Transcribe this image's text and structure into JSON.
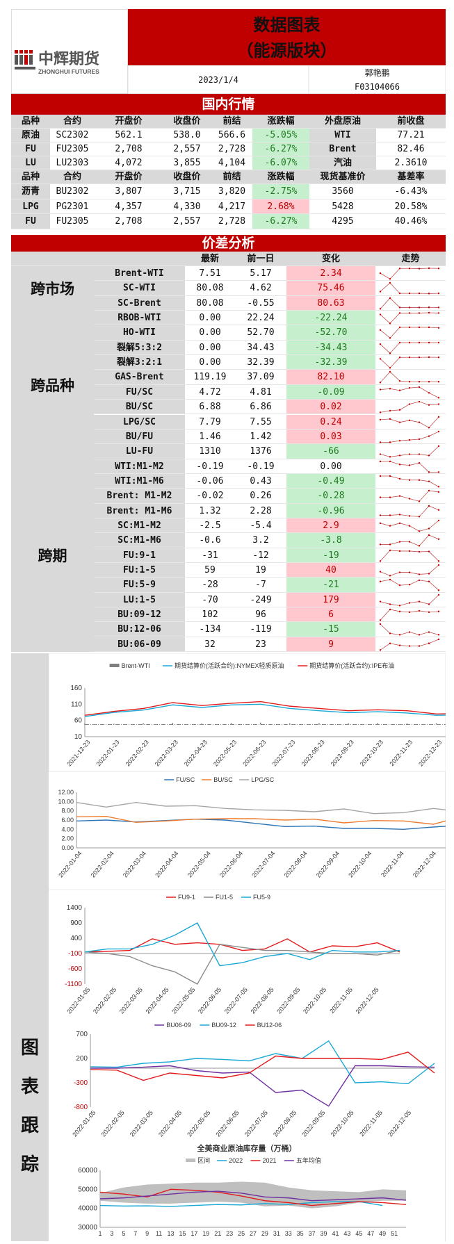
{
  "header": {
    "logo_cn": "中辉期货",
    "logo_en": "ZHONGHUI FUTURES",
    "title_line1": "数据图表",
    "title_line2": "（能源版块）",
    "date": "2023/1/4",
    "author": "郭艳鹏",
    "license": "F03104066"
  },
  "domestic": {
    "section_title": "国内行情",
    "headers1": [
      "品种",
      "合约",
      "开盘价",
      "收盘价",
      "前结",
      "涨跌幅",
      "外盘原油",
      "前收盘"
    ],
    "rows1": [
      [
        "原油",
        "SC2302",
        "562.1",
        "538.0",
        "566.6",
        "-5.05%",
        "WTI",
        "77.21"
      ],
      [
        "FU",
        "FU2305",
        "2,708",
        "2,557",
        "2,728",
        "-6.27%",
        "Brent",
        "82.46"
      ],
      [
        "LU",
        "LU2303",
        "4,072",
        "3,855",
        "4,104",
        "-6.07%",
        "汽油",
        "2.3610"
      ]
    ],
    "headers2": [
      "品种",
      "合约",
      "开盘价",
      "收盘价",
      "前结",
      "涨跌幅",
      "现货基准价",
      "基差率"
    ],
    "rows2": [
      [
        "沥青",
        "BU2302",
        "3,807",
        "3,715",
        "3,820",
        "-2.75%",
        "3560",
        "-6.43%"
      ],
      [
        "LPG",
        "PG2301",
        "4,357",
        "4,330",
        "4,217",
        "2.68%",
        "5428",
        "20.58%"
      ],
      [
        "FU",
        "FU2305",
        "2,708",
        "2,557",
        "2,728",
        "-6.27%",
        "4295",
        "40.46%"
      ]
    ]
  },
  "spread": {
    "section_title": "价差分析",
    "headers": [
      "最新",
      "前一日",
      "变化",
      "走势"
    ],
    "groups": [
      {
        "label": "跨市场",
        "start": 0,
        "end": 2
      },
      {
        "label": "跨品种",
        "start": 3,
        "end": 12
      },
      {
        "label": "跨期",
        "start": 13,
        "end": 25
      }
    ],
    "rows": [
      {
        "name": "Brent-WTI",
        "latest": "7.51",
        "prev": "5.17",
        "change": "2.34",
        "dir": "up",
        "trend": [
          5,
          2,
          7.5,
          7.5,
          7.4,
          7.6,
          7.5
        ]
      },
      {
        "name": "SC-WTI",
        "latest": "80.08",
        "prev": "4.62",
        "change": "75.46",
        "dir": "up",
        "trend": [
          4,
          9,
          3,
          3,
          3,
          2.9,
          3
        ]
      },
      {
        "name": "SC-Brent",
        "latest": "80.08",
        "prev": "-0.55",
        "change": "80.63",
        "dir": "up",
        "trend": [
          1,
          9,
          2,
          2,
          2,
          2.1,
          2
        ]
      },
      {
        "name": "RBOB-WTI",
        "latest": "0.00",
        "prev": "22.24",
        "change": "-22.24",
        "dir": "down",
        "trend": [
          8,
          2,
          9,
          9,
          9,
          9.2,
          9
        ]
      },
      {
        "name": "HO-WTI",
        "latest": "0.00",
        "prev": "52.70",
        "change": "-52.70",
        "dir": "down",
        "trend": [
          8,
          2,
          10,
          10,
          10,
          10,
          9.6
        ]
      },
      {
        "name": "裂解5:3:2",
        "latest": "0.00",
        "prev": "34.43",
        "change": "-34.43",
        "dir": "down",
        "trend": [
          8,
          2,
          9,
          9,
          9,
          9,
          9
        ]
      },
      {
        "name": "裂解3:2:1",
        "latest": "0.00",
        "prev": "32.39",
        "change": "-32.39",
        "dir": "down",
        "trend": [
          8,
          2,
          9,
          9,
          9,
          9.1,
          9
        ]
      },
      {
        "name": "GAS-Brent",
        "latest": "119.19",
        "prev": "37.09",
        "change": "82.10",
        "dir": "up",
        "trend": [
          3,
          10,
          4,
          3.5,
          3.5,
          3.5,
          3.5
        ]
      },
      {
        "name": "FU/SC",
        "latest": "4.72",
        "prev": "4.81",
        "change": "-0.09",
        "dir": "down",
        "trend": [
          7,
          7.5,
          6.5,
          8,
          8.5,
          5,
          2
        ]
      },
      {
        "name": "BU/SC",
        "latest": "6.88",
        "prev": "6.86",
        "change": "0.02",
        "dir": "up",
        "trend": [
          2,
          3,
          3.5,
          7,
          8.5,
          6.5,
          7
        ]
      },
      {
        "name": "LPG/SC",
        "latest": "7.79",
        "prev": "7.55",
        "change": "0.24",
        "dir": "up",
        "trend": [
          7,
          7.5,
          5,
          6.5,
          5,
          1,
          9
        ]
      },
      {
        "name": "BU/FU",
        "latest": "1.46",
        "prev": "1.42",
        "change": "0.03",
        "dir": "up",
        "trend": [
          1,
          1,
          2,
          2.5,
          3,
          5,
          8
        ]
      },
      {
        "name": "LU-FU",
        "latest": "1310",
        "prev": "1376",
        "change": "-66",
        "dir": "down",
        "trend": [
          6,
          4,
          5,
          6,
          6,
          5,
          12
        ]
      },
      {
        "name": "WTI:M1-M2",
        "latest": "-0.19",
        "prev": "-0.19",
        "change": "0.00",
        "dir": "flat",
        "trend": [
          9,
          9,
          7,
          6.5,
          8,
          2,
          2
        ]
      },
      {
        "name": "WTI:M1-M6",
        "latest": "-0.06",
        "prev": "0.43",
        "change": "-0.49",
        "dir": "down",
        "trend": [
          9,
          9,
          7,
          6,
          6,
          5,
          1
        ]
      },
      {
        "name": "Brent: M1-M2",
        "latest": "-0.02",
        "prev": "0.26",
        "change": "-0.28",
        "dir": "down",
        "trend": [
          4,
          4,
          5,
          3,
          1,
          9,
          8
        ]
      },
      {
        "name": "Brent: M1-M6",
        "latest": "1.32",
        "prev": "2.28",
        "change": "-0.96",
        "dir": "down",
        "trend": [
          2,
          2,
          2.5,
          1.5,
          1,
          9,
          6
        ]
      },
      {
        "name": "SC:M1-M2",
        "latest": "-2.5",
        "prev": "-5.4",
        "change": "2.9",
        "dir": "up",
        "trend": [
          7,
          5,
          7,
          5,
          1,
          3,
          9
        ]
      },
      {
        "name": "SC:M1-M6",
        "latest": "-0.6",
        "prev": "3.2",
        "change": "-3.8",
        "dir": "down",
        "trend": [
          2,
          2,
          4,
          4,
          1,
          9,
          6
        ]
      },
      {
        "name": "FU:9-1",
        "latest": "-31",
        "prev": "-12",
        "change": "-19",
        "dir": "down",
        "trend": [
          1,
          9,
          8.5,
          8.5,
          8,
          8.2,
          1
        ]
      },
      {
        "name": "FU:1-5",
        "latest": "59",
        "prev": "19",
        "change": "40",
        "dir": "up",
        "trend": [
          5,
          2,
          4.5,
          4.5,
          3,
          3.5,
          10
        ]
      },
      {
        "name": "FU:5-9",
        "latest": "-28",
        "prev": "-7",
        "change": "-21",
        "dir": "down",
        "trend": [
          8,
          9.5,
          5,
          5.5,
          9,
          8,
          1
        ]
      },
      {
        "name": "LU:1-5",
        "latest": "-70",
        "prev": "-249",
        "change": "179",
        "dir": "up",
        "trend": [
          5,
          3,
          2,
          4,
          5,
          3,
          10
        ]
      },
      {
        "name": "BU:09-12",
        "latest": "102",
        "prev": "96",
        "change": "6",
        "dir": "up",
        "trend": [
          1,
          9,
          7.5,
          7,
          8,
          7,
          7.5
        ]
      },
      {
        "name": "BU:12-06",
        "latest": "-134",
        "prev": "-119",
        "change": "-15",
        "dir": "down",
        "trend": [
          9,
          2,
          1,
          3,
          1,
          3,
          1
        ]
      },
      {
        "name": "BU:06-09",
        "latest": "32",
        "prev": "23",
        "change": "9",
        "dir": "up",
        "trend": [
          1,
          6,
          4.5,
          4,
          4,
          6,
          9
        ]
      }
    ]
  },
  "charts_section": {
    "label": "图表跟踪"
  },
  "chart_data": [
    {
      "type": "line",
      "title": "",
      "ylim": [
        10,
        160
      ],
      "y2lim": [
        -50,
        150
      ],
      "yticks": [
        10,
        60,
        110,
        160
      ],
      "y2ticks": [
        -50,
        0,
        50,
        100,
        150
      ],
      "xticks": [
        "2021-12-23",
        "2022-01-23",
        "2022-02-23",
        "2022-03-23",
        "2022-04-23",
        "2022-05-23",
        "2022-06-23",
        "2022-07-23",
        "2022-08-23",
        "2022-09-23",
        "2022-10-23",
        "2022-11-23",
        "2022-12-23"
      ],
      "series": [
        {
          "name": "Brent-WTI",
          "color": "#7f7f7f",
          "axis": "right",
          "kind": "bar",
          "values": [
            4,
            3,
            5,
            7,
            4,
            6,
            8,
            5,
            6,
            5,
            6,
            5,
            5,
            7
          ]
        },
        {
          "name": "期货结算价(活跃合约):NYMEX轻质原油",
          "color": "#1aa9d6",
          "values": [
            72,
            85,
            92,
            108,
            100,
            108,
            110,
            97,
            90,
            84,
            87,
            83,
            76,
            77
          ]
        },
        {
          "name": "期货结算价(活跃合约):IPE布油",
          "color": "#e31a1c",
          "values": [
            76,
            88,
            97,
            115,
            106,
            113,
            118,
            104,
            97,
            90,
            93,
            90,
            80,
            82
          ]
        }
      ]
    },
    {
      "type": "line",
      "ylim": [
        0,
        12
      ],
      "yticks": [
        "0.00",
        "2.00",
        "4.00",
        "6.00",
        "8.00",
        "10.00",
        "12.00"
      ],
      "xticks": [
        "2022-01-04",
        "2022-02-04",
        "2022-03-04",
        "2022-04-04",
        "2022-05-04",
        "2022-06-04",
        "2022-07-04",
        "2022-08-04",
        "2022-09-04",
        "2022-10-04",
        "2022-11-04",
        "2022-12-04"
      ],
      "series": [
        {
          "name": "FU/SC",
          "color": "#2e75b6",
          "values": [
            5.8,
            6.0,
            5.6,
            5.9,
            6.2,
            6.0,
            5.3,
            4.6,
            4.7,
            4.2,
            4.2,
            4.0,
            4.5,
            4.9
          ]
        },
        {
          "name": "BU/SC",
          "color": "#ed7d31",
          "values": [
            6.7,
            6.8,
            5.5,
            5.8,
            6.2,
            6.3,
            6.3,
            6.0,
            6.2,
            5.4,
            5.9,
            5.8,
            5.1,
            6.8
          ]
        },
        {
          "name": "LPG/SC",
          "color": "#a5a5a5",
          "values": [
            9.8,
            8.8,
            9.8,
            9.0,
            9.1,
            8.5,
            8.2,
            8.1,
            7.8,
            8.4,
            7.4,
            7.6,
            8.5,
            7.8
          ]
        }
      ]
    },
    {
      "type": "line",
      "ylim": [
        -1100,
        1400
      ],
      "yticks": [
        -1100,
        -600,
        -100,
        400,
        900,
        1400
      ],
      "xticks": [
        "2022-01-05",
        "2022-02-05",
        "2022-03-05",
        "2022-04-05",
        "2022-05-05",
        "2022-06-05",
        "2022-07-05",
        "2022-08-05",
        "2022-09-05",
        "2022-10-05",
        "2022-11-05",
        "2022-12-05"
      ],
      "series": [
        {
          "name": "FU9-1",
          "color": "#e31a1c",
          "values": [
            -50,
            -30,
            0,
            380,
            200,
            250,
            200,
            0,
            50,
            380,
            -50,
            150,
            120,
            250,
            -50
          ]
        },
        {
          "name": "FU1-5",
          "color": "#8c8c8c",
          "values": [
            -50,
            -100,
            -200,
            -500,
            -700,
            -1100,
            200,
            100,
            0,
            0,
            -50,
            -100,
            -100,
            -150,
            0
          ]
        },
        {
          "name": "FU5-9",
          "color": "#1aa9d6",
          "values": [
            -50,
            50,
            50,
            200,
            500,
            900,
            -500,
            -400,
            -200,
            -100,
            -300,
            0,
            -50,
            -50,
            0
          ]
        }
      ]
    },
    {
      "type": "line",
      "ylim": [
        -800,
        700
      ],
      "yticks": [
        -800,
        -300,
        200,
        700
      ],
      "xticks": [
        "2022-01-05",
        "2022-02-05",
        "2022-03-05",
        "2022-04-05",
        "2022-05-05",
        "2022-06-05",
        "2022-07-05",
        "2022-08-05",
        "2022-09-05",
        "2022-10-05",
        "2022-11-05",
        "2022-12-05"
      ],
      "series": [
        {
          "name": "BU06-09",
          "color": "#7030a0",
          "values": [
            0,
            0,
            20,
            50,
            -50,
            -100,
            -80,
            -500,
            -450,
            -780,
            50,
            50,
            30,
            20
          ]
        },
        {
          "name": "BU09-12",
          "color": "#1aa9d6",
          "values": [
            30,
            20,
            100,
            130,
            200,
            180,
            150,
            300,
            200,
            560,
            -300,
            -280,
            -320,
            100
          ]
        },
        {
          "name": "BU12-06",
          "color": "#e31a1c",
          "values": [
            -30,
            -40,
            -250,
            -100,
            -150,
            -200,
            -100,
            250,
            200,
            200,
            200,
            180,
            330,
            -100
          ]
        }
      ]
    },
    {
      "type": "area-line",
      "title": "全美商业原油库存量（万桶）",
      "ylim": [
        30000,
        60000
      ],
      "yticks": [
        30000,
        40000,
        50000,
        60000
      ],
      "x": [
        1,
        5,
        9,
        13,
        17,
        21,
        25,
        29,
        33,
        37,
        41,
        45,
        49,
        52
      ],
      "xticks": [
        1,
        3,
        5,
        7,
        9,
        11,
        13,
        15,
        17,
        19,
        21,
        23,
        25,
        27,
        29,
        31,
        33,
        35,
        37,
        39,
        41,
        43,
        45,
        47,
        49,
        51
      ],
      "band": {
        "name": "区间",
        "color": "#bfbfbf",
        "min": [
          44000,
          43000,
          42500,
          42500,
          43000,
          43500,
          43000,
          41000,
          41500,
          40000,
          41000,
          43000,
          44000,
          44000
        ],
        "max": [
          48000,
          51000,
          52500,
          53000,
          53500,
          53500,
          54000,
          53500,
          51000,
          49500,
          49000,
          48500,
          50000,
          49500
        ]
      },
      "series": [
        {
          "name": "2022",
          "color": "#1aa9d6",
          "values": [
            41500,
            41200,
            41300,
            41000,
            41500,
            42000,
            41800,
            42500,
            42000,
            43000,
            43500,
            43500,
            41500,
            null
          ]
        },
        {
          "name": "2021",
          "color": "#e31a1c",
          "values": [
            48500,
            47500,
            46000,
            50000,
            49500,
            48500,
            46500,
            44000,
            43000,
            41500,
            42500,
            43500,
            43000,
            42000
          ]
        },
        {
          "name": "五年均值",
          "color": "#7030a0",
          "values": [
            45000,
            45500,
            46500,
            47500,
            48500,
            49000,
            48000,
            46000,
            45500,
            44000,
            44500,
            45000,
            45500,
            44300
          ]
        }
      ]
    }
  ]
}
